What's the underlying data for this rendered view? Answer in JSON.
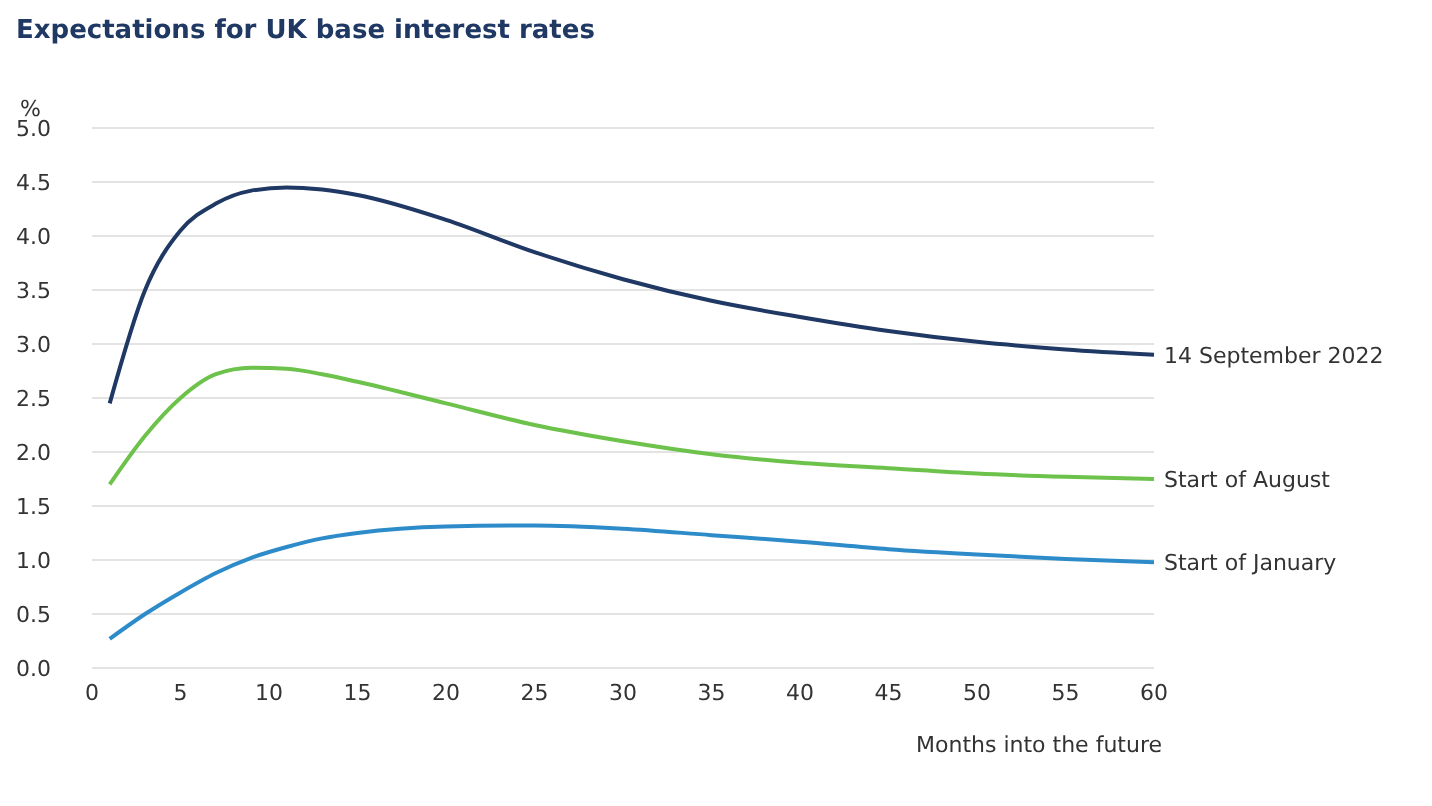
{
  "chart_data": {
    "type": "line",
    "title": "Expectations for UK base interest rates",
    "xlabel": "Months into the future",
    "ylabel": "%",
    "x": [
      1,
      3,
      5,
      7,
      9,
      11,
      13,
      15,
      20,
      25,
      30,
      35,
      40,
      45,
      50,
      55,
      60
    ],
    "series": [
      {
        "name": "14 September 2022",
        "color": "#1f3864",
        "values": [
          2.45,
          3.5,
          4.05,
          4.3,
          4.42,
          4.45,
          4.43,
          4.38,
          4.15,
          3.85,
          3.6,
          3.4,
          3.25,
          3.12,
          3.02,
          2.95,
          2.9
        ]
      },
      {
        "name": "Start of August",
        "color": "#6cc24a",
        "values": [
          1.7,
          2.15,
          2.5,
          2.72,
          2.78,
          2.77,
          2.72,
          2.65,
          2.45,
          2.25,
          2.1,
          1.98,
          1.9,
          1.85,
          1.8,
          1.77,
          1.75
        ]
      },
      {
        "name": "Start of January",
        "color": "#2e8bc9",
        "values": [
          0.27,
          0.5,
          0.7,
          0.88,
          1.02,
          1.12,
          1.2,
          1.25,
          1.31,
          1.32,
          1.29,
          1.23,
          1.17,
          1.1,
          1.05,
          1.01,
          0.98
        ]
      }
    ],
    "xlim": [
      0,
      60
    ],
    "xticks": [
      0,
      5,
      10,
      15,
      20,
      25,
      30,
      35,
      40,
      45,
      50,
      55,
      60
    ],
    "ylim": [
      0,
      5
    ],
    "yticks": [
      {
        "value": 0,
        "label": "0.0"
      },
      0.5,
      {
        "value": 1,
        "label": "1.0"
      },
      1.5,
      {
        "value": 2,
        "label": "2.0"
      },
      2.5,
      {
        "value": 3,
        "label": "3.0"
      },
      3.5,
      {
        "value": 4,
        "label": "4.0"
      },
      4.5,
      {
        "value": 5,
        "label": "5.0"
      }
    ],
    "grid": "y",
    "marker": "none",
    "line_style": "solid"
  }
}
